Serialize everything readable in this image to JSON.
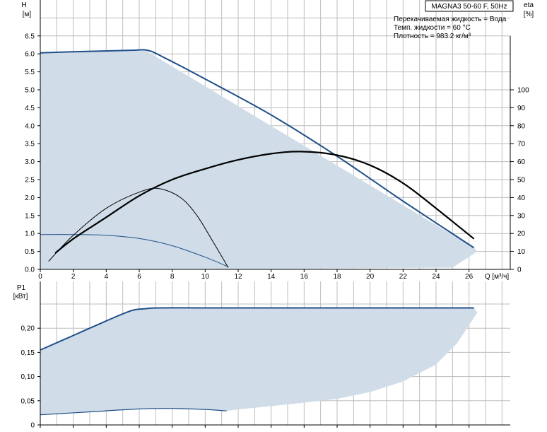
{
  "chart_data": [
    {
      "type": "line",
      "name": "head-efficiency",
      "title": "MAGNA3 50-60 F, 50Hz",
      "info_lines": [
        "Перекачиваемая жидкость = Вода",
        "Темп. жидкости = 60 °C",
        "Плотность = 983.2 кг/м³"
      ],
      "xlabel": "Q [м³/ч]",
      "ylabel_lines": [
        "H",
        "[м]"
      ],
      "y2label_lines": [
        "eta",
        "[%]"
      ],
      "xlim": [
        0,
        28.5
      ],
      "ylim": [
        0,
        7.5
      ],
      "y2lim": [
        0,
        150
      ],
      "xticks": [
        "0",
        "2",
        "4",
        "6",
        "8",
        "10",
        "12",
        "14",
        "16",
        "18",
        "20",
        "22",
        "24",
        "26"
      ],
      "yticks": [
        "0.0",
        "0.5",
        "1.0",
        "1.5",
        "2.0",
        "2.5",
        "3.0",
        "3.5",
        "4.0",
        "4.5",
        "5.0",
        "5.5",
        "6.0",
        "6.5"
      ],
      "y2ticks": [
        "0",
        "10",
        "20",
        "30",
        "40",
        "50",
        "60",
        "70",
        "80",
        "90",
        "100"
      ],
      "grid": true,
      "colors": {
        "area": "#d0dde8",
        "max_curve": "#1f4f8a",
        "duty_curve": "#000000",
        "grid": "#bdbdbd"
      },
      "area_envelope": {
        "upper_x": [
          0,
          6.3,
          26.3
        ],
        "upper_y": [
          6.03,
          6.12,
          0.6
        ],
        "lower_x": [
          0,
          11.3,
          25,
          26.5
        ],
        "lower_y": [
          0,
          0,
          0.05,
          0.5
        ]
      },
      "series": [
        {
          "kind": "max-head-curve",
          "x": [
            0,
            3,
            5.5,
            6.5,
            7.5,
            10,
            14,
            18,
            22,
            26.3
          ],
          "y": [
            6.03,
            6.07,
            6.1,
            6.1,
            5.9,
            5.3,
            4.3,
            3.15,
            1.9,
            0.6
          ]
        },
        {
          "kind": "min-head-curve",
          "x": [
            0,
            2,
            4,
            6,
            8,
            10,
            11.4
          ],
          "y": [
            0.97,
            0.97,
            0.95,
            0.86,
            0.66,
            0.34,
            0.07
          ]
        },
        {
          "kind": "duty-head-curve",
          "x": [
            0.9,
            2,
            4,
            6,
            8,
            10,
            12,
            14,
            15.8,
            18,
            20,
            22,
            24,
            26.3
          ],
          "y": [
            0.45,
            0.85,
            1.45,
            2.05,
            2.5,
            2.8,
            3.05,
            3.22,
            3.28,
            3.18,
            2.9,
            2.4,
            1.7,
            0.85
          ]
        },
        {
          "kind": "efficiency-curve",
          "axis": "eta",
          "x": [
            0.5,
            2,
            4,
            6,
            7.2,
            8.5,
            9.5,
            10.5,
            11.4
          ],
          "y": [
            4.5,
            19,
            34,
            43,
            45,
            40,
            30,
            15,
            1
          ]
        }
      ]
    },
    {
      "type": "line",
      "name": "power",
      "ylabel_lines": [
        "P1",
        "[кВт]"
      ],
      "xlim": [
        0,
        28.5
      ],
      "ylim": [
        0,
        0.25
      ],
      "yticks": [
        "0",
        "0,05",
        "0,10",
        "0,15",
        "0,20"
      ],
      "grid": true,
      "colors": {
        "area": "#d0dde8",
        "max_curve": "#1f4f8a"
      },
      "area_envelope": {
        "upper_x": [
          0,
          5.5,
          6.3,
          7.2,
          26.3,
          26.5
        ],
        "upper_y": [
          0.155,
          0.236,
          0.24,
          0.242,
          0.242,
          0.232
        ],
        "lower_x": [
          11.3,
          12,
          14,
          16,
          18,
          20,
          22,
          24,
          25.3,
          26.5
        ],
        "lower_y": [
          0.029,
          0.032,
          0.039,
          0.046,
          0.054,
          0.068,
          0.09,
          0.125,
          0.17,
          0.232
        ]
      },
      "series": [
        {
          "kind": "max-power-curve",
          "x": [
            0,
            2,
            4,
            5.5,
            6.3,
            7.2,
            10,
            14,
            18,
            22,
            26.3
          ],
          "y": [
            0.155,
            0.185,
            0.215,
            0.236,
            0.24,
            0.242,
            0.242,
            0.242,
            0.242,
            0.242,
            0.242
          ]
        },
        {
          "kind": "min-power-curve",
          "x": [
            0,
            3,
            6,
            8,
            10,
            11.3
          ],
          "y": [
            0.021,
            0.027,
            0.033,
            0.034,
            0.032,
            0.029
          ]
        }
      ]
    }
  ]
}
